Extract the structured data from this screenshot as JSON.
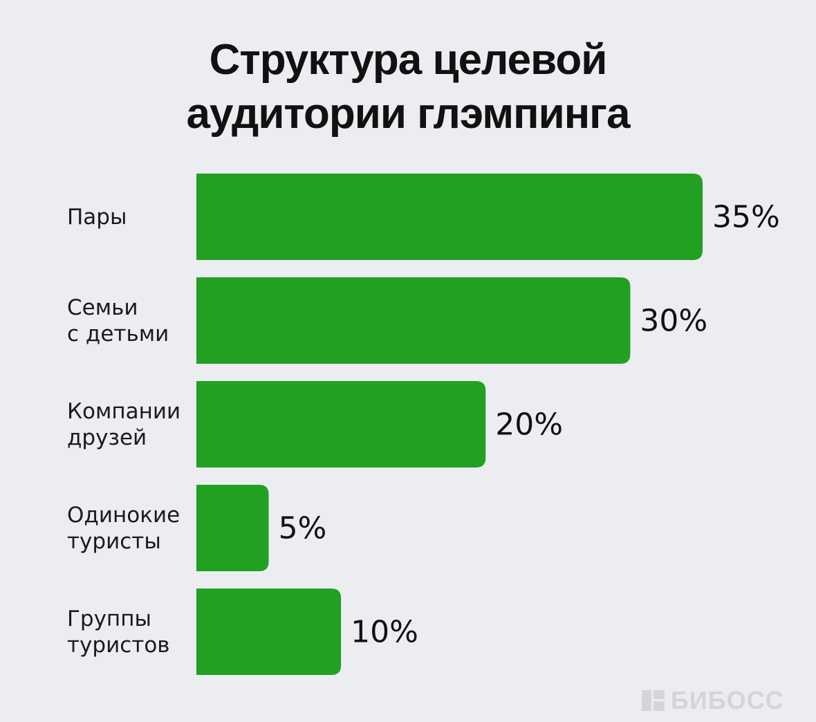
{
  "chart_data": {
    "type": "bar",
    "orientation": "horizontal",
    "title": "Структура целевой\nаудитории глэмпинга",
    "categories": [
      "Пары",
      "Семьи\nс детьми",
      "Компании\nдрузей",
      "Одинокие\nтуристы",
      "Группы\nтуристов"
    ],
    "values": [
      35,
      30,
      20,
      5,
      10
    ],
    "value_labels": [
      "35%",
      "30%",
      "20%",
      "5%",
      "10%"
    ],
    "color": "#22a022",
    "watermark": "БИБОСС"
  }
}
